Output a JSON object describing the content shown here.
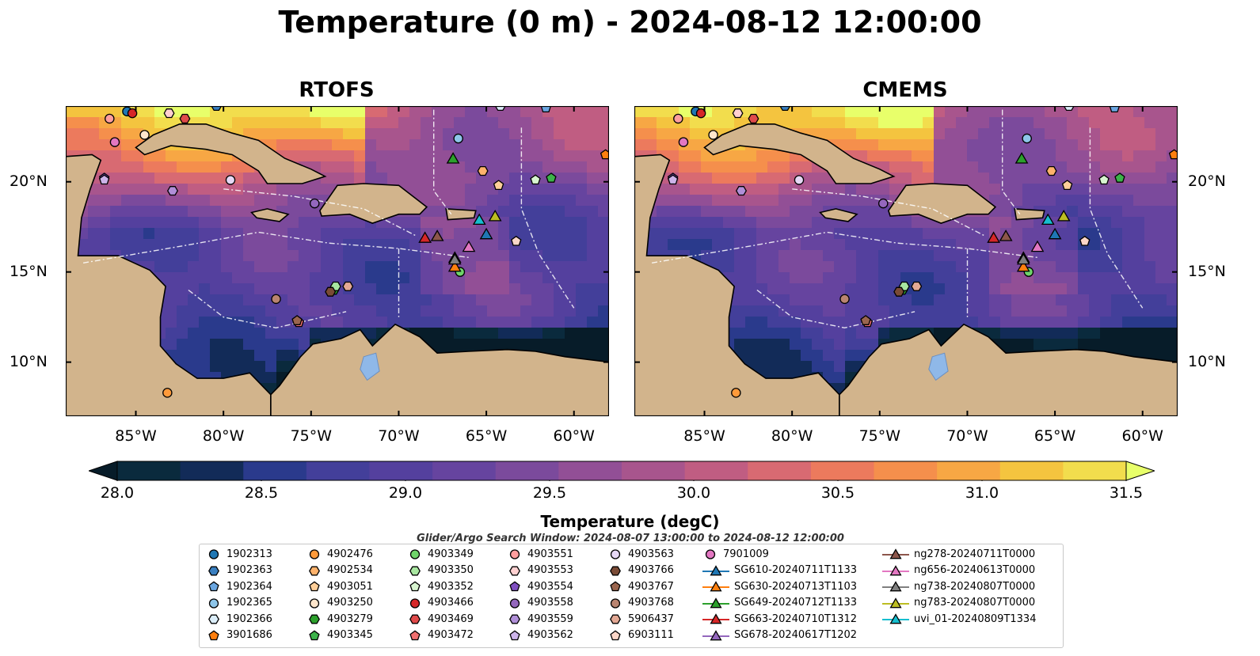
{
  "title": "Temperature (0 m) - 2024-08-12 12:00:00",
  "panels": [
    {
      "title": "RTOFS"
    },
    {
      "title": "CMEMS"
    }
  ],
  "axes": {
    "lon_ticks": [
      "85°W",
      "80°W",
      "75°W",
      "70°W",
      "65°W",
      "60°W"
    ],
    "lon_values": [
      -85,
      -80,
      -75,
      -70,
      -65,
      -60
    ],
    "lat_ticks": [
      "20°N",
      "15°N",
      "10°N"
    ],
    "lat_values": [
      20,
      15,
      10
    ],
    "lon_range": [
      -89,
      -58
    ],
    "lat_range": [
      7,
      24.2
    ]
  },
  "colorbar": {
    "label": "Temperature (degC)",
    "ticks": [
      "28.0",
      "28.5",
      "29.0",
      "29.5",
      "30.0",
      "30.5",
      "31.0",
      "31.5"
    ],
    "tick_values": [
      28.0,
      28.5,
      29.0,
      29.5,
      30.0,
      30.5,
      31.0,
      31.5
    ],
    "range": [
      28.0,
      31.5
    ],
    "colors": [
      "#0a2a3d",
      "#122b58",
      "#2a3a8c",
      "#433f9a",
      "#54409e",
      "#66449f",
      "#7b4a9c",
      "#924f96",
      "#a8558d",
      "#c05d82",
      "#d86a72",
      "#ec7a5d",
      "#f58f4c",
      "#f7a744",
      "#f4c43f",
      "#f2dd4d"
    ],
    "under_color": "#071c29",
    "over_color": "#e8ff6a"
  },
  "legend": {
    "header": "Glider/Argo Search Window: 2024-08-07 13:00:00 to 2024-08-12 12:00:00",
    "columns": [
      [
        {
          "label": "1902313",
          "marker": "circle",
          "color": "#1f77b4"
        },
        {
          "label": "1902363",
          "marker": "hexagon",
          "color": "#3a7fc0"
        },
        {
          "label": "1902364",
          "marker": "pentagon",
          "color": "#6aa6e0"
        },
        {
          "label": "1902365",
          "marker": "circle",
          "color": "#8ec6ea"
        },
        {
          "label": "1902366",
          "marker": "hexagon",
          "color": "#dbeefa"
        },
        {
          "label": "3901686",
          "marker": "pentagon",
          "color": "#ff7f0e"
        }
      ],
      [
        {
          "label": "4902476",
          "marker": "circle",
          "color": "#ff9a3a"
        },
        {
          "label": "4902534",
          "marker": "hexagon",
          "color": "#ffb26b"
        },
        {
          "label": "4903051",
          "marker": "pentagon",
          "color": "#ffcf99"
        },
        {
          "label": "4903250",
          "marker": "circle",
          "color": "#ffe6cc"
        },
        {
          "label": "4903279",
          "marker": "hexagon",
          "color": "#2ca02c"
        },
        {
          "label": "4903345",
          "marker": "pentagon",
          "color": "#3cb34a"
        }
      ],
      [
        {
          "label": "4903349",
          "marker": "circle",
          "color": "#6fd46a"
        },
        {
          "label": "4903350",
          "marker": "hexagon",
          "color": "#a8e6a0"
        },
        {
          "label": "4903352",
          "marker": "pentagon",
          "color": "#d8f5d0"
        },
        {
          "label": "4903466",
          "marker": "circle",
          "color": "#d62728"
        },
        {
          "label": "4903469",
          "marker": "hexagon",
          "color": "#e04a4a"
        },
        {
          "label": "4903472",
          "marker": "pentagon",
          "color": "#f07070"
        }
      ],
      [
        {
          "label": "4903551",
          "marker": "circle",
          "color": "#ff9e9e"
        },
        {
          "label": "4903553",
          "marker": "hexagon",
          "color": "#ffd0d0"
        },
        {
          "label": "4903554",
          "marker": "pentagon",
          "color": "#7f4fc0"
        },
        {
          "label": "4903558",
          "marker": "circle",
          "color": "#9467bd"
        },
        {
          "label": "4903559",
          "marker": "hexagon",
          "color": "#b08fd8"
        },
        {
          "label": "4903562",
          "marker": "pentagon",
          "color": "#cdb4ea"
        }
      ],
      [
        {
          "label": "4903563",
          "marker": "circle",
          "color": "#e6d8f5"
        },
        {
          "label": "4903766",
          "marker": "hexagon",
          "color": "#7a4b36"
        },
        {
          "label": "4903767",
          "marker": "pentagon",
          "color": "#9a654e"
        },
        {
          "label": "4903768",
          "marker": "circle",
          "color": "#b98470"
        },
        {
          "label": "5906437",
          "marker": "hexagon",
          "color": "#e3a894"
        },
        {
          "label": "6903111",
          "marker": "pentagon",
          "color": "#fbd6c8"
        }
      ],
      [
        {
          "label": "7901009",
          "marker": "circle",
          "color": "#e377c2"
        },
        {
          "label": "SG610-20240711T1133",
          "marker": "triangle",
          "color": "#1f77b4",
          "line": true
        },
        {
          "label": "SG630-20240713T1103",
          "marker": "triangle",
          "color": "#ff7f0e",
          "line": true
        },
        {
          "label": "SG649-20240712T1133",
          "marker": "triangle",
          "color": "#2ca02c",
          "line": true
        },
        {
          "label": "SG663-20240710T1312",
          "marker": "triangle",
          "color": "#d62728",
          "line": true
        },
        {
          "label": "SG678-20240617T1202",
          "marker": "triangle",
          "color": "#9467bd",
          "line": true
        }
      ],
      [
        {
          "label": "ng278-20240711T0000",
          "marker": "triangle",
          "color": "#8c564b",
          "line": true
        },
        {
          "label": "ng656-20240613T0000",
          "marker": "triangle",
          "color": "#e377c2",
          "line": true
        },
        {
          "label": "ng738-20240807T0000",
          "marker": "triangle",
          "color": "#7f7f7f",
          "line": true
        },
        {
          "label": "ng783-20240807T0000",
          "marker": "triangle",
          "color": "#bcbd22",
          "line": true
        },
        {
          "label": "uvi_01-20240809T1334",
          "marker": "triangle",
          "color": "#17becf",
          "line": true
        }
      ]
    ]
  },
  "chart_data": {
    "type": "heatmap",
    "variable": "Temperature",
    "units": "degC",
    "depth": "0 m",
    "time": "2024-08-12 12:00:00",
    "models": [
      "RTOFS",
      "CMEMS"
    ],
    "color_range": [
      28.0,
      31.5
    ],
    "floats": [
      {
        "id": "1902313",
        "lon": -85.5,
        "lat": 23.9
      },
      {
        "id": "1902363",
        "lon": -80.4,
        "lat": 24.2
      },
      {
        "id": "1902364",
        "lon": -61.6,
        "lat": 24.1
      },
      {
        "id": "1902365",
        "lon": -66.6,
        "lat": 22.4
      },
      {
        "id": "1902366",
        "lon": -64.2,
        "lat": 24.2
      },
      {
        "id": "3901686",
        "lon": -58.2,
        "lat": 21.5
      },
      {
        "id": "4902476",
        "lon": -83.2,
        "lat": 8.3
      },
      {
        "id": "4902534",
        "lon": -65.2,
        "lat": 20.6
      },
      {
        "id": "4903051",
        "lon": -64.3,
        "lat": 19.8
      },
      {
        "id": "4903250",
        "lon": -84.5,
        "lat": 22.6
      },
      {
        "id": "4903279",
        "lon": -73.7,
        "lat": 14.0
      },
      {
        "id": "4903345",
        "lon": -61.3,
        "lat": 20.2
      },
      {
        "id": "4903349",
        "lon": -66.5,
        "lat": 15.0
      },
      {
        "id": "4903350",
        "lon": -73.6,
        "lat": 14.2
      },
      {
        "id": "4903352",
        "lon": -62.2,
        "lat": 20.1
      },
      {
        "id": "4903466",
        "lon": -85.2,
        "lat": 23.8
      },
      {
        "id": "4903469",
        "lon": -82.2,
        "lat": 23.5
      },
      {
        "id": "4903472",
        "lon": -75.7,
        "lat": 12.2
      },
      {
        "id": "4903551",
        "lon": -86.5,
        "lat": 23.5
      },
      {
        "id": "4903553",
        "lon": -83.1,
        "lat": 23.8
      },
      {
        "id": "4903554",
        "lon": -86.8,
        "lat": 20.2
      },
      {
        "id": "4903558",
        "lon": -74.8,
        "lat": 18.8
      },
      {
        "id": "4903559",
        "lon": -82.9,
        "lat": 19.5
      },
      {
        "id": "4903562",
        "lon": -86.8,
        "lat": 20.1
      },
      {
        "id": "4903563",
        "lon": -79.6,
        "lat": 20.1
      },
      {
        "id": "4903766",
        "lon": -73.9,
        "lat": 13.9
      },
      {
        "id": "4903767",
        "lon": -75.8,
        "lat": 12.3
      },
      {
        "id": "4903768",
        "lon": -77.0,
        "lat": 13.5
      },
      {
        "id": "5906437",
        "lon": -72.9,
        "lat": 14.2
      },
      {
        "id": "6903111",
        "lon": -63.3,
        "lat": 16.7
      },
      {
        "id": "7901009",
        "lon": -86.2,
        "lat": 22.2
      }
    ],
    "gliders": [
      {
        "id": "SG610-20240711T1133",
        "lon": -65.0,
        "lat": 17.1
      },
      {
        "id": "SG630-20240713T1103",
        "lon": -66.8,
        "lat": 15.3
      },
      {
        "id": "SG649-20240712T1133",
        "lon": -66.9,
        "lat": 21.3
      },
      {
        "id": "SG663-20240710T1312",
        "lon": -68.5,
        "lat": 16.9
      },
      {
        "id": "SG678-20240617T1202",
        "lon": -66.8,
        "lat": 15.8
      },
      {
        "id": "ng278-20240711T0000",
        "lon": -67.8,
        "lat": 17.0
      },
      {
        "id": "ng656-20240613T0000",
        "lon": -66.0,
        "lat": 16.4
      },
      {
        "id": "ng738-20240807T0000",
        "lon": -66.8,
        "lat": 15.7
      },
      {
        "id": "ng783-20240807T0000",
        "lon": -64.5,
        "lat": 18.1
      },
      {
        "id": "uvi_01-20240809T1334",
        "lon": -65.4,
        "lat": 17.9
      }
    ]
  }
}
